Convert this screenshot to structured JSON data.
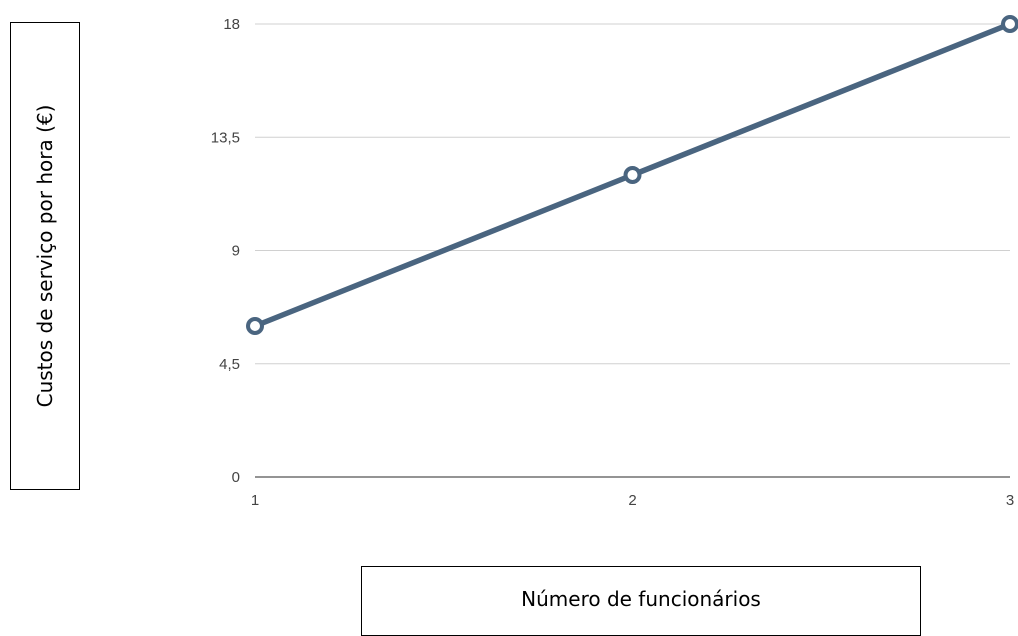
{
  "chart_data": {
    "type": "line",
    "title": "",
    "xlabel": "Número de funcionários",
    "ylabel": "Custos de serviço por hora (€)",
    "x": [
      1,
      2,
      3
    ],
    "x_tick_labels": [
      "1",
      "2",
      "3"
    ],
    "y_ticks": [
      0,
      4.5,
      9,
      13.5,
      18
    ],
    "y_tick_labels": [
      "0",
      "4,5",
      "9",
      "13,5",
      "18"
    ],
    "ylim": [
      0,
      18
    ],
    "grid": true,
    "series": [
      {
        "values": [
          6,
          12,
          18
        ],
        "color": "#4a6580"
      }
    ]
  }
}
